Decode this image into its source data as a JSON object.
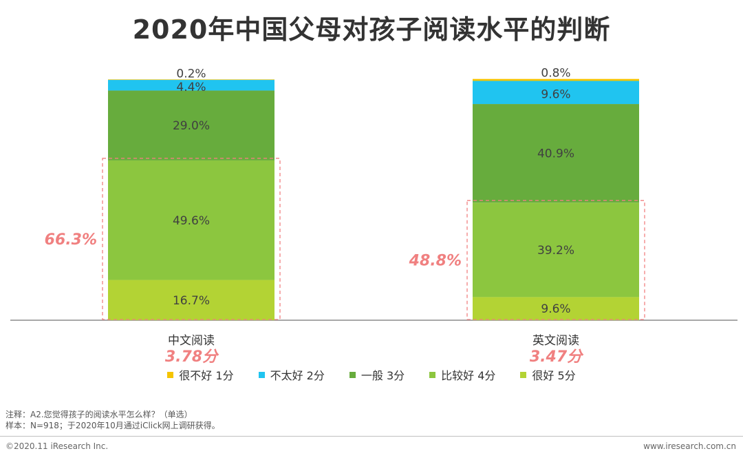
{
  "title": "2020年中国父母对孩子阅读水平的判断",
  "chart_data": {
    "type": "bar",
    "stacked": true,
    "categories": [
      "中文阅读",
      "英文阅读"
    ],
    "category_scores": [
      "3.78分",
      "3.47分"
    ],
    "ylim": [
      0,
      100
    ],
    "series": [
      {
        "name": "很不好 1分",
        "color": "#F5C400",
        "values": [
          0.2,
          0.8
        ],
        "labels": [
          "0.2%",
          "0.8%"
        ]
      },
      {
        "name": "不太好 2分",
        "color": "#20C4F0",
        "values": [
          4.4,
          9.6
        ],
        "labels": [
          "4.4%",
          "9.6%"
        ]
      },
      {
        "name": "一般 3分",
        "color": "#67AC3D",
        "values": [
          29.0,
          40.9
        ],
        "labels": [
          "29.0%",
          "40.9%"
        ]
      },
      {
        "name": "比较好 4分",
        "color": "#8CC63F",
        "values": [
          49.6,
          39.2
        ],
        "labels": [
          "49.6%",
          "39.2%"
        ]
      },
      {
        "name": "很好 5分",
        "color": "#B3D334",
        "values": [
          16.7,
          9.6
        ],
        "labels": [
          "16.7%",
          "9.6%"
        ]
      }
    ],
    "annotations": [
      {
        "label": "66.3%",
        "category": "中文阅读",
        "spans": [
          "比较好 4分",
          "很好 5分"
        ]
      },
      {
        "label": "48.8%",
        "category": "英文阅读",
        "spans": [
          "比较好 4分",
          "很好 5分"
        ]
      }
    ],
    "annotation_color": "#F08080",
    "score_color": "#F08080"
  },
  "legend": [
    {
      "label": "很不好 1分",
      "color": "#F5C400"
    },
    {
      "label": "不太好 2分",
      "color": "#20C4F0"
    },
    {
      "label": "一般 3分",
      "color": "#67AC3D"
    },
    {
      "label": "比较好 4分",
      "color": "#8CC63F"
    },
    {
      "label": "很好 5分",
      "color": "#B3D334"
    }
  ],
  "notes": {
    "note": "注释：A2.您觉得孩子的阅读水平怎么样？（单选）",
    "sample": "样本：N=918；于2020年10月通过iClick网上调研获得。"
  },
  "footer": {
    "copyright": "©2020.11 iResearch Inc.",
    "website": "www.iresearch.com.cn"
  }
}
